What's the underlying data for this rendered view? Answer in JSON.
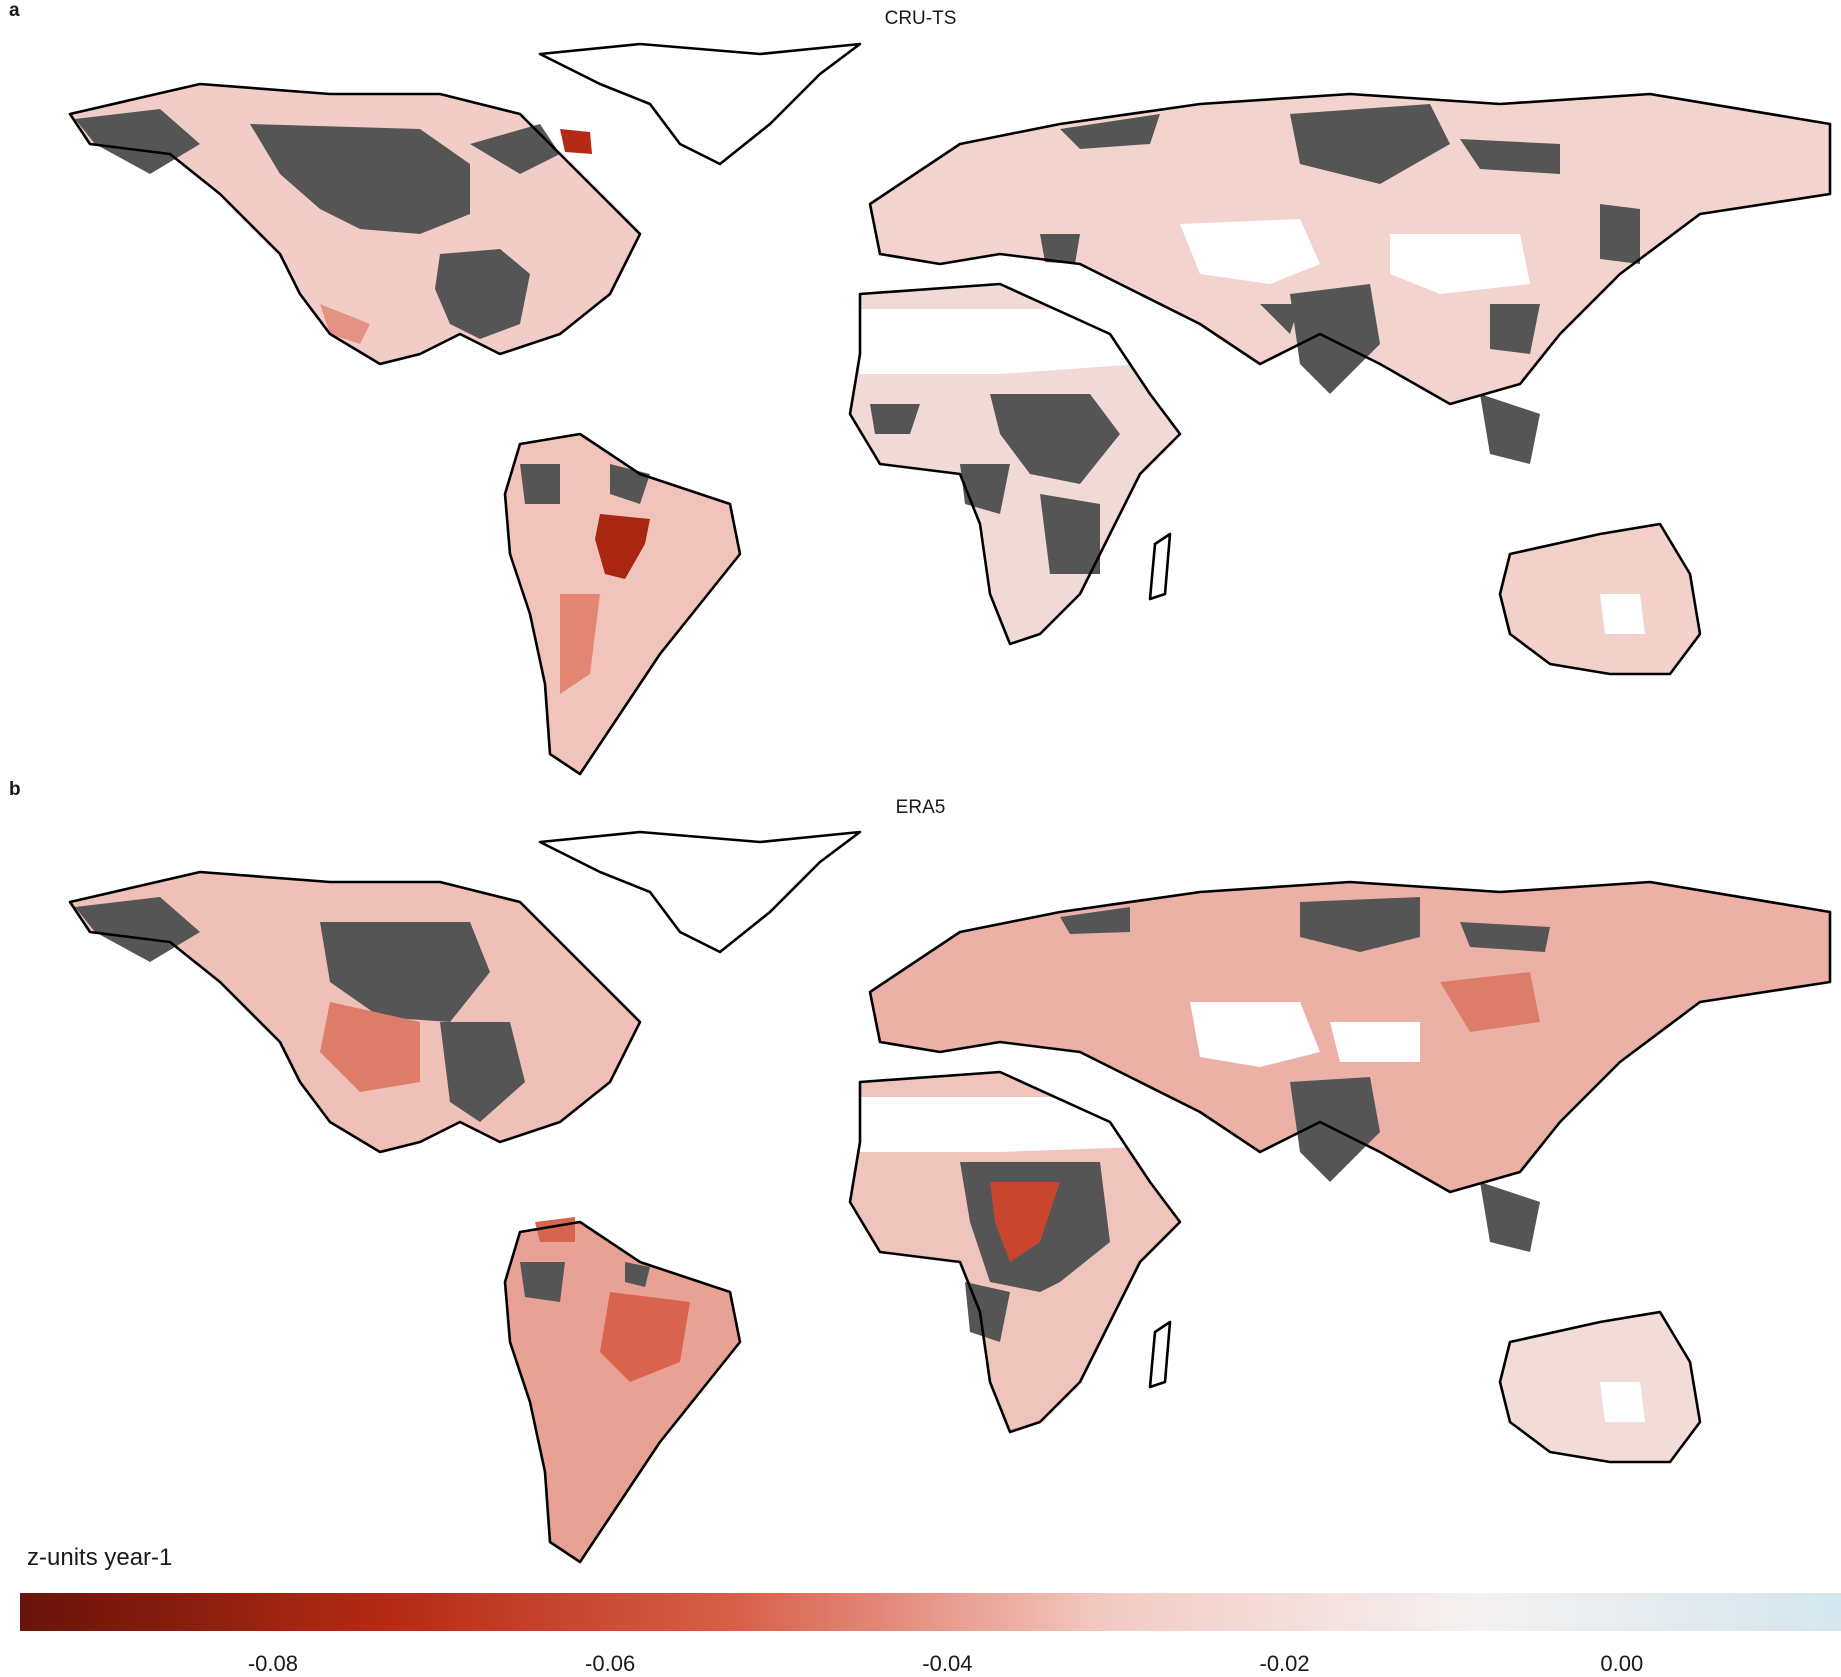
{
  "panels": [
    {
      "letter": "a",
      "title": "CRU-TS"
    },
    {
      "letter": "b",
      "title": "ERA5"
    }
  ],
  "legend": {
    "title": "z-units year-1",
    "ticks": [
      "-0.08",
      "-0.06",
      "-0.04",
      "-0.02",
      "0.00"
    ],
    "tick_values": [
      -0.08,
      -0.06,
      -0.04,
      -0.02,
      0.0
    ],
    "range": [
      -0.095,
      0.013
    ],
    "colormap": [
      "#67140a",
      "#b52a14",
      "#d9624d",
      "#f3cbc4",
      "#f4f1f1",
      "#d4e6ee"
    ],
    "no_data_color": "#555555"
  },
  "colors": {
    "coastline": "#000000",
    "background": "#ffffff"
  }
}
